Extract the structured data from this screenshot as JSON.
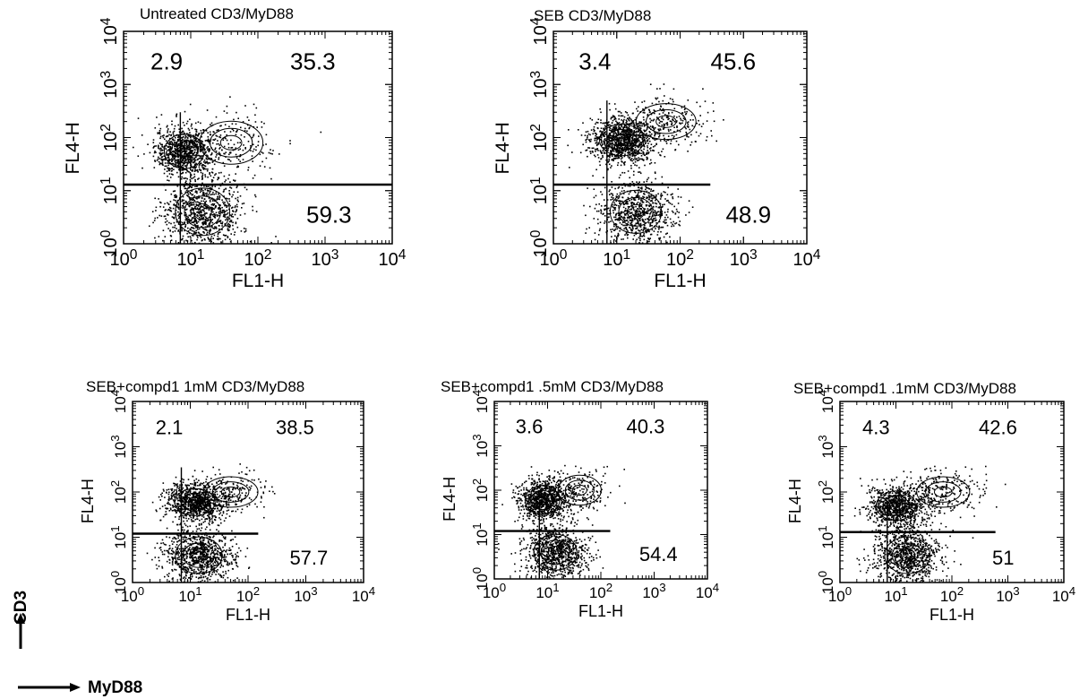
{
  "figure": {
    "y_caption": "CD3",
    "x_caption": "MyD88"
  },
  "chart_data": [
    {
      "type": "scatter",
      "title": "Untreated CD3/MyD88",
      "xlabel": "FL1-H",
      "ylabel": "FL4-H",
      "xscale": "log",
      "yscale": "log",
      "xlim": [
        1,
        10000
      ],
      "ylim": [
        1,
        10000
      ],
      "x_tick_labels": [
        "10^0",
        "10^1",
        "10^2",
        "10^3",
        "10^4"
      ],
      "y_tick_labels": [
        "10^0",
        "10^1",
        "10^2",
        "10^3",
        "10^4"
      ],
      "gate": {
        "x": 7,
        "y_full": 13,
        "y_half": 60,
        "x_end": 10000
      },
      "quadrant_percentages": {
        "upper_left": "2.9",
        "upper_right": "35.3",
        "lower_right": "59.3"
      },
      "populations": [
        {
          "x": 8,
          "y": 55,
          "sx": 0.22,
          "sy": 0.24,
          "n": 900
        },
        {
          "x": 15,
          "y": 4,
          "sx": 0.3,
          "sy": 0.33,
          "n": 900
        },
        {
          "x": 40,
          "y": 80,
          "sx": 0.35,
          "sy": 0.3,
          "n": 200
        }
      ]
    },
    {
      "type": "scatter",
      "title": "SEB CD3/MyD88",
      "xlabel": "FL1-H",
      "ylabel": "FL4-H",
      "xscale": "log",
      "yscale": "log",
      "xlim": [
        1,
        10000
      ],
      "ylim": [
        1,
        10000
      ],
      "x_tick_labels": [
        "10^0",
        "10^1",
        "10^2",
        "10^3",
        "10^4"
      ],
      "y_tick_labels": [
        "10^0",
        "10^1",
        "10^2",
        "10^3",
        "10^4"
      ],
      "gate": {
        "x": 7,
        "y_full": 13,
        "y_half": 100,
        "x_end": 300
      },
      "quadrant_percentages": {
        "upper_left": "3.4",
        "upper_right": "45.6",
        "lower_right": "48.9"
      },
      "populations": [
        {
          "x": 12,
          "y": 90,
          "sx": 0.26,
          "sy": 0.22,
          "n": 1100
        },
        {
          "x": 20,
          "y": 4,
          "sx": 0.3,
          "sy": 0.3,
          "n": 800
        },
        {
          "x": 60,
          "y": 200,
          "sx": 0.35,
          "sy": 0.25,
          "n": 250
        }
      ]
    },
    {
      "type": "scatter",
      "title": "SEB+compd1 1mM CD3/MyD88",
      "xlabel": "FL1-H",
      "ylabel": "FL4-H",
      "xscale": "log",
      "yscale": "log",
      "xlim": [
        1,
        10000
      ],
      "ylim": [
        1,
        10000
      ],
      "x_tick_labels": [
        "10^0",
        "10^1",
        "10^2",
        "10^3",
        "10^4"
      ],
      "y_tick_labels": [
        "10^0",
        "10^1",
        "10^2",
        "10^3",
        "10^4"
      ],
      "gate": {
        "x": 7,
        "y_full": 12,
        "y_half": 70,
        "x_end": 150
      },
      "quadrant_percentages": {
        "upper_left": "2.1",
        "upper_right": "38.5",
        "lower_right": "57.7"
      },
      "populations": [
        {
          "x": 12,
          "y": 60,
          "sx": 0.26,
          "sy": 0.22,
          "n": 900
        },
        {
          "x": 14,
          "y": 4,
          "sx": 0.3,
          "sy": 0.3,
          "n": 900
        },
        {
          "x": 50,
          "y": 100,
          "sx": 0.35,
          "sy": 0.25,
          "n": 200
        }
      ]
    },
    {
      "type": "scatter",
      "title": "SEB+compd1 .5mM CD3/MyD88",
      "xlabel": "FL1-H",
      "ylabel": "FL4-H",
      "xscale": "log",
      "yscale": "log",
      "xlim": [
        1,
        10000
      ],
      "ylim": [
        1,
        10000
      ],
      "x_tick_labels": [
        "10^0",
        "10^1",
        "10^2",
        "10^3",
        "10^4"
      ],
      "y_tick_labels": [
        "10^0",
        "10^1",
        "10^2",
        "10^3",
        "10^4"
      ],
      "gate": {
        "x": 7,
        "y_full": 12,
        "y_half": 12,
        "x_end": 150
      },
      "quadrant_percentages": {
        "upper_left": "3.6",
        "upper_right": "40.3",
        "lower_right": "54.4"
      },
      "populations": [
        {
          "x": 8,
          "y": 60,
          "sx": 0.24,
          "sy": 0.24,
          "n": 900
        },
        {
          "x": 14,
          "y": 4,
          "sx": 0.3,
          "sy": 0.3,
          "n": 900
        },
        {
          "x": 40,
          "y": 100,
          "sx": 0.3,
          "sy": 0.25,
          "n": 200
        }
      ]
    },
    {
      "type": "scatter",
      "title": "SEB+compd1 .1mM CD3/MyD88",
      "xlabel": "FL1-H",
      "ylabel": "FL4-H",
      "xscale": "log",
      "yscale": "log",
      "xlim": [
        1,
        10000
      ],
      "ylim": [
        1,
        10000
      ],
      "x_tick_labels": [
        "10^0",
        "10^1",
        "10^2",
        "10^3",
        "10^4"
      ],
      "y_tick_labels": [
        "10^0",
        "10^1",
        "10^2",
        "10^3",
        "10^4"
      ],
      "gate": {
        "x": 7,
        "y_full": 13,
        "y_half": 13,
        "x_end": 600
      },
      "quadrant_percentages": {
        "upper_left": "4.3",
        "upper_right": "42.6",
        "lower_right": "51"
      },
      "populations": [
        {
          "x": 10,
          "y": 50,
          "sx": 0.26,
          "sy": 0.24,
          "n": 900
        },
        {
          "x": 16,
          "y": 4,
          "sx": 0.3,
          "sy": 0.3,
          "n": 900
        },
        {
          "x": 70,
          "y": 100,
          "sx": 0.35,
          "sy": 0.25,
          "n": 250
        }
      ]
    }
  ]
}
